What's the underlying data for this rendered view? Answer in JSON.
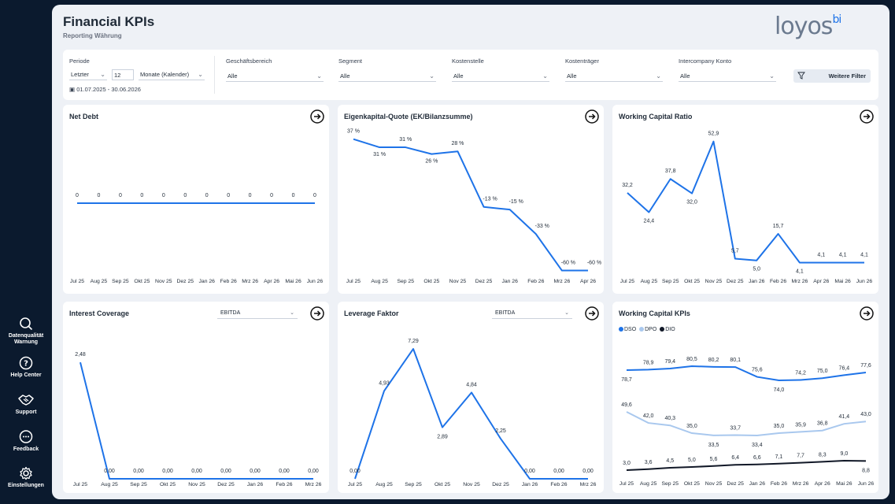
{
  "header": {
    "title": "Financial KPIs",
    "subtitle": "Reporting Währung",
    "logo_text": "loyos",
    "logo_suffix": "bi"
  },
  "sidebar": {
    "items": [
      {
        "label": "Datenqualität Warnung",
        "icon": "search-icon"
      },
      {
        "label": "Help Center",
        "icon": "help-icon"
      },
      {
        "label": "Support",
        "icon": "handshake-icon"
      },
      {
        "label": "Feedback",
        "icon": "chat-icon"
      },
      {
        "label": "Einstellungen",
        "icon": "gear-icon"
      }
    ]
  },
  "filters": {
    "periode": {
      "label": "Periode",
      "mode": "Letzter",
      "count": "12",
      "unit": "Monate (Kalender)",
      "range": "01.07.2025 - 30.06.2026"
    },
    "geschaeftsbereich": {
      "label": "Geschäftsbereich",
      "value": "Alle"
    },
    "segment": {
      "label": "Segment",
      "value": "Alle"
    },
    "kostenstelle": {
      "label": "Kostenstelle",
      "value": "Alle"
    },
    "kostentraeger": {
      "label": "Kostenträger",
      "value": "Alle"
    },
    "intercompany": {
      "label": "Intercompany Konto",
      "value": "Alle"
    },
    "more_filters": "Weitere Filter"
  },
  "colors": {
    "accent": "#1e73e8",
    "dpo": "#a9c8ee",
    "dio": "#111827"
  },
  "cards": {
    "net_debt": {
      "title": "Net Debt"
    },
    "ek_quote": {
      "title": "Eigenkapital-Quote (EK/Bilanzsumme)"
    },
    "wcr": {
      "title": "Working Capital Ratio"
    },
    "interest": {
      "title": "Interest Coverage",
      "measure": "EBITDA"
    },
    "leverage": {
      "title": "Leverage Faktor",
      "measure": "EBITDA"
    },
    "wc_kpis": {
      "title": "Working Capital KPIs"
    }
  },
  "chart_data": [
    {
      "id": "net_debt",
      "type": "line",
      "categories": [
        "Jul 25",
        "Aug 25",
        "Sep 25",
        "Okt 25",
        "Nov 25",
        "Dez 25",
        "Jan 26",
        "Feb 26",
        "Mrz 26",
        "Apr 26",
        "Mai 26",
        "Jun 26"
      ],
      "series": [
        {
          "values": [
            0,
            0,
            0,
            0,
            0,
            0,
            0,
            0,
            0,
            0,
            0,
            0
          ],
          "labels": [
            "0",
            "0",
            "0",
            "0",
            "0",
            "0",
            "0",
            "0",
            "0",
            "0",
            "0",
            "0"
          ]
        }
      ],
      "ylim": [
        -10,
        10
      ]
    },
    {
      "id": "ek_quote",
      "type": "line",
      "categories": [
        "Jul 25",
        "Aug 25",
        "Sep 25",
        "Okt 25",
        "Nov 25",
        "Dez 25",
        "Jan 26",
        "Feb 26",
        "Mrz 26",
        "Apr 26"
      ],
      "series": [
        {
          "values": [
            37,
            31,
            31,
            26,
            28,
            -13,
            -15,
            -33,
            -60,
            -60
          ],
          "labels": [
            "37 %",
            "31 %",
            "31 %",
            "26 %",
            "28 %",
            "-13 %",
            "-15 %",
            "-33 %",
            "-60 %",
            "-60 %"
          ]
        }
      ],
      "ylim": [
        -62,
        38
      ]
    },
    {
      "id": "wcr",
      "type": "line",
      "categories": [
        "Jul 25",
        "Aug 25",
        "Sep 25",
        "Okt 25",
        "Nov 25",
        "Dez 25",
        "Jan 26",
        "Feb 26",
        "Mrz 26",
        "Apr 26",
        "Mai 26",
        "Jun 26"
      ],
      "series": [
        {
          "values": [
            32.2,
            24.4,
            37.8,
            32.0,
            52.9,
            5.7,
            5.0,
            15.7,
            4.1,
            4.1,
            4.1,
            4.1
          ],
          "labels": [
            "32,2",
            "24,4",
            "37,8",
            "32,0",
            "52,9",
            "5,7",
            "5,0",
            "15,7",
            "4,1",
            "4,1",
            "4,1",
            "4,1"
          ]
        }
      ],
      "ylim": [
        3,
        55
      ]
    },
    {
      "id": "interest",
      "type": "line",
      "categories": [
        "Jul 25",
        "Aug 25",
        "Sep 25",
        "Okt 25",
        "Nov 25",
        "Dez 25",
        "Jan 26",
        "Feb 26",
        "Mrz 26"
      ],
      "series": [
        {
          "values": [
            2.48,
            0,
            0,
            0,
            0,
            0,
            0,
            0,
            0
          ],
          "labels": [
            "2,48",
            "0,00",
            "0,00",
            "0,00",
            "0,00",
            "0,00",
            "0,00",
            "0,00",
            "0,00"
          ]
        }
      ],
      "ylim": [
        0,
        2.6
      ]
    },
    {
      "id": "leverage",
      "type": "line",
      "categories": [
        "Jul 25",
        "Aug 25",
        "Sep 25",
        "Okt 25",
        "Nov 25",
        "Dez 25",
        "Jan 26",
        "Feb 26",
        "Mrz 26"
      ],
      "series": [
        {
          "values": [
            0,
            4.93,
            7.29,
            2.89,
            4.84,
            2.25,
            0,
            0,
            0
          ],
          "labels": [
            "0,00",
            "4,93",
            "7,29",
            "2,89",
            "4,84",
            "2,25",
            "0,00",
            "0,00",
            "0,00"
          ]
        }
      ],
      "ylim": [
        0,
        7.6
      ]
    },
    {
      "id": "wc_kpis",
      "type": "line",
      "categories": [
        "Jul 25",
        "Aug 25",
        "Sep 25",
        "Okt 25",
        "Nov 25",
        "Dez 25",
        "Jan 26",
        "Feb 26",
        "Mrz 26",
        "Apr 26",
        "Mai 26",
        "Jun 26"
      ],
      "legend": [
        "DSO",
        "DPO",
        "DIO"
      ],
      "series": [
        {
          "name": "DSO",
          "values": [
            78.7,
            78.9,
            79.4,
            80.5,
            80.2,
            80.1,
            75.6,
            74.0,
            74.2,
            75.0,
            76.4,
            77.6
          ],
          "labels": [
            "78,7",
            "78,9",
            "79,4",
            "80,5",
            "80,2",
            "80,1",
            "75,6",
            "74,0",
            "74,2",
            "75,0",
            "76,4",
            "77,6"
          ]
        },
        {
          "name": "DPO",
          "values": [
            49.6,
            42.0,
            40.3,
            35.0,
            33.5,
            33.7,
            33.4,
            35.0,
            35.9,
            36.8,
            41.4,
            43.0
          ],
          "labels": [
            "49,6",
            "42,0",
            "40,3",
            "35,0",
            "33,5",
            "33,7",
            "33,4",
            "35,0",
            "35,9",
            "36,8",
            "41,4",
            "43,0"
          ]
        },
        {
          "name": "DIO",
          "values": [
            3.0,
            3.6,
            4.5,
            5.0,
            5.6,
            6.4,
            6.6,
            7.1,
            7.7,
            8.3,
            9.0,
            8.8
          ],
          "labels": [
            "3,0",
            "3,6",
            "4,5",
            "5,0",
            "5,6",
            "6,4",
            "6,6",
            "7,1",
            "7,7",
            "8,3",
            "9,0",
            "8,8"
          ]
        }
      ]
    }
  ]
}
